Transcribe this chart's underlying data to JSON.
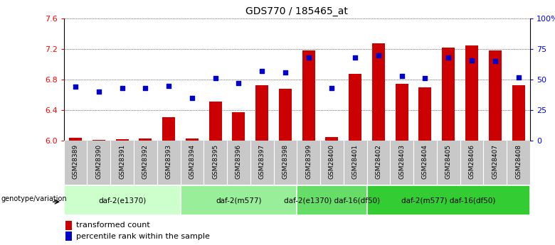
{
  "title": "GDS770 / 185465_at",
  "samples": [
    "GSM28389",
    "GSM28390",
    "GSM28391",
    "GSM28392",
    "GSM28393",
    "GSM28394",
    "GSM28395",
    "GSM28396",
    "GSM28397",
    "GSM28398",
    "GSM28399",
    "GSM28400",
    "GSM28401",
    "GSM28402",
    "GSM28403",
    "GSM28404",
    "GSM28405",
    "GSM28406",
    "GSM28407",
    "GSM28408"
  ],
  "bar_values": [
    6.04,
    6.01,
    6.02,
    6.03,
    6.31,
    6.03,
    6.51,
    6.37,
    6.73,
    6.68,
    7.18,
    6.05,
    6.88,
    7.27,
    6.75,
    6.7,
    7.22,
    7.25,
    7.18,
    6.73
  ],
  "dot_values": [
    44,
    40,
    43,
    43,
    45,
    35,
    51,
    47,
    57,
    56,
    68,
    43,
    68,
    70,
    53,
    51,
    68,
    66,
    65,
    52
  ],
  "bar_color": "#cc0000",
  "dot_color": "#0000cc",
  "ymin": 6.0,
  "ymax": 7.6,
  "y_ticks": [
    6.0,
    6.4,
    6.8,
    7.2,
    7.6
  ],
  "y2_ticks": [
    0,
    25,
    50,
    75,
    100
  ],
  "y2_labels": [
    "0",
    "25",
    "50",
    "75",
    "100%"
  ],
  "groups": [
    {
      "label": "daf-2(e1370)",
      "start": 0,
      "end": 5,
      "color": "#ccffcc"
    },
    {
      "label": "daf-2(m577)",
      "start": 5,
      "end": 10,
      "color": "#99ee99"
    },
    {
      "label": "daf-2(e1370) daf-16(df50)",
      "start": 10,
      "end": 13,
      "color": "#66dd66"
    },
    {
      "label": "daf-2(m577) daf-16(df50)",
      "start": 13,
      "end": 20,
      "color": "#33cc33"
    }
  ],
  "genotype_label": "genotype/variation",
  "legend_bar": "transformed count",
  "legend_dot": "percentile rank within the sample",
  "bar_width": 0.55,
  "sample_bg_color": "#c8c8c8",
  "sample_label_fontsize": 6.5
}
